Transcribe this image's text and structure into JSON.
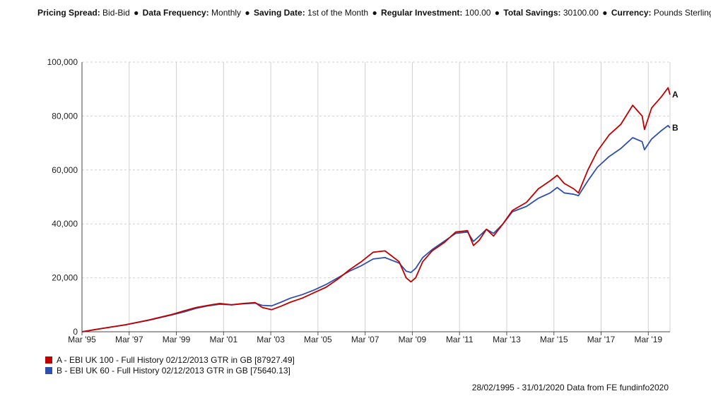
{
  "header": {
    "items": [
      {
        "key": "Pricing Spread:",
        "value": "Bid-Bid"
      },
      {
        "key": "Data Frequency:",
        "value": "Monthly"
      },
      {
        "key": "Saving Date:",
        "value": "1st of the Month"
      },
      {
        "key": "Regular Investment:",
        "value": "100.00"
      },
      {
        "key": "Total Savings:",
        "value": "30100.00"
      },
      {
        "key": "Currency:",
        "value": "Pounds Sterling"
      }
    ],
    "separator": "●"
  },
  "chart_data": {
    "type": "line",
    "title": "",
    "xlabel": "",
    "ylabel": "",
    "xlim": [
      1995.16,
      2020.08
    ],
    "ylim": [
      0,
      100000
    ],
    "grid": true,
    "x_ticks": [
      {
        "label": "Mar '95",
        "x": 1995.16
      },
      {
        "label": "Mar '97",
        "x": 1997.16
      },
      {
        "label": "Mar '99",
        "x": 1999.16
      },
      {
        "label": "Mar '01",
        "x": 2001.16
      },
      {
        "label": "Mar '03",
        "x": 2003.16
      },
      {
        "label": "Mar '05",
        "x": 2005.16
      },
      {
        "label": "Mar '07",
        "x": 2007.16
      },
      {
        "label": "Mar '09",
        "x": 2009.16
      },
      {
        "label": "Mar '11",
        "x": 2011.16
      },
      {
        "label": "Mar '13",
        "x": 2013.16
      },
      {
        "label": "Mar '15",
        "x": 2015.16
      },
      {
        "label": "Mar '17",
        "x": 2017.16
      },
      {
        "label": "Mar '19",
        "x": 2019.16
      }
    ],
    "y_ticks": [
      {
        "label": "0",
        "y": 0
      },
      {
        "label": "20,000",
        "y": 20000
      },
      {
        "label": "40,000",
        "y": 40000
      },
      {
        "label": "60,000",
        "y": 60000
      },
      {
        "label": "80,000",
        "y": 80000
      },
      {
        "label": "100,000",
        "y": 100000
      }
    ],
    "series": [
      {
        "name": "A - EBI UK 100 - Full History 02/12/2013 GTR in GB [87927.49]",
        "end_label": "A",
        "color": "#c00000",
        "points": [
          [
            1995.16,
            0
          ],
          [
            1996.0,
            1200
          ],
          [
            1997.0,
            2600
          ],
          [
            1998.0,
            4400
          ],
          [
            1999.0,
            6500
          ],
          [
            1999.5,
            7800
          ],
          [
            2000.0,
            9000
          ],
          [
            2000.5,
            9800
          ],
          [
            2001.0,
            10500
          ],
          [
            2001.5,
            10000
          ],
          [
            2002.0,
            10500
          ],
          [
            2002.5,
            10800
          ],
          [
            2002.8,
            9000
          ],
          [
            2003.2,
            8200
          ],
          [
            2003.6,
            9500
          ],
          [
            2004.0,
            11000
          ],
          [
            2004.5,
            12500
          ],
          [
            2005.0,
            14500
          ],
          [
            2005.5,
            16500
          ],
          [
            2006.0,
            19500
          ],
          [
            2006.5,
            23000
          ],
          [
            2007.0,
            26000
          ],
          [
            2007.5,
            29500
          ],
          [
            2008.0,
            30000
          ],
          [
            2008.3,
            28000
          ],
          [
            2008.6,
            26000
          ],
          [
            2008.9,
            20000
          ],
          [
            2009.1,
            18500
          ],
          [
            2009.3,
            20000
          ],
          [
            2009.6,
            26000
          ],
          [
            2010.0,
            30000
          ],
          [
            2010.5,
            33000
          ],
          [
            2011.0,
            37000
          ],
          [
            2011.5,
            37500
          ],
          [
            2011.75,
            32000
          ],
          [
            2012.0,
            34000
          ],
          [
            2012.3,
            38000
          ],
          [
            2012.6,
            35500
          ],
          [
            2013.0,
            40000
          ],
          [
            2013.4,
            45000
          ],
          [
            2014.0,
            48000
          ],
          [
            2014.5,
            53000
          ],
          [
            2015.0,
            56000
          ],
          [
            2015.3,
            58000
          ],
          [
            2015.6,
            55000
          ],
          [
            2016.0,
            53000
          ],
          [
            2016.2,
            51500
          ],
          [
            2016.6,
            60000
          ],
          [
            2017.0,
            67000
          ],
          [
            2017.5,
            73000
          ],
          [
            2018.0,
            77000
          ],
          [
            2018.5,
            84000
          ],
          [
            2018.9,
            80000
          ],
          [
            2019.0,
            75000
          ],
          [
            2019.3,
            83000
          ],
          [
            2019.7,
            87000
          ],
          [
            2020.0,
            90500
          ],
          [
            2020.08,
            87927
          ]
        ]
      },
      {
        "name": "B - EBI UK 60 - Full History 02/12/2013 GTR in GB [75640.13]",
        "end_label": "B",
        "color": "#2e4fad",
        "points": [
          [
            1995.16,
            0
          ],
          [
            1996.0,
            1200
          ],
          [
            1997.0,
            2600
          ],
          [
            1998.0,
            4300
          ],
          [
            1999.0,
            6300
          ],
          [
            1999.5,
            7400
          ],
          [
            2000.0,
            8700
          ],
          [
            2000.5,
            9600
          ],
          [
            2001.0,
            10200
          ],
          [
            2001.5,
            10000
          ],
          [
            2002.0,
            10400
          ],
          [
            2002.5,
            10600
          ],
          [
            2002.8,
            9800
          ],
          [
            2003.2,
            9600
          ],
          [
            2003.6,
            11000
          ],
          [
            2004.0,
            12500
          ],
          [
            2004.5,
            13800
          ],
          [
            2005.0,
            15500
          ],
          [
            2005.5,
            17500
          ],
          [
            2006.0,
            20000
          ],
          [
            2006.5,
            22500
          ],
          [
            2007.0,
            24500
          ],
          [
            2007.5,
            27000
          ],
          [
            2008.0,
            27500
          ],
          [
            2008.3,
            26500
          ],
          [
            2008.6,
            25500
          ],
          [
            2008.9,
            22500
          ],
          [
            2009.1,
            22000
          ],
          [
            2009.3,
            23500
          ],
          [
            2009.6,
            27500
          ],
          [
            2010.0,
            30500
          ],
          [
            2010.5,
            33500
          ],
          [
            2011.0,
            36500
          ],
          [
            2011.5,
            37000
          ],
          [
            2011.75,
            33500
          ],
          [
            2012.0,
            35500
          ],
          [
            2012.3,
            38000
          ],
          [
            2012.6,
            36500
          ],
          [
            2013.0,
            40000
          ],
          [
            2013.4,
            44500
          ],
          [
            2014.0,
            46500
          ],
          [
            2014.5,
            49500
          ],
          [
            2015.0,
            51500
          ],
          [
            2015.3,
            53500
          ],
          [
            2015.6,
            51500
          ],
          [
            2016.0,
            51000
          ],
          [
            2016.2,
            50500
          ],
          [
            2016.6,
            56000
          ],
          [
            2017.0,
            61000
          ],
          [
            2017.5,
            65000
          ],
          [
            2018.0,
            68000
          ],
          [
            2018.5,
            72000
          ],
          [
            2018.9,
            70500
          ],
          [
            2019.0,
            67500
          ],
          [
            2019.3,
            71500
          ],
          [
            2019.7,
            74500
          ],
          [
            2020.0,
            76500
          ],
          [
            2020.08,
            75640
          ]
        ]
      }
    ]
  },
  "legend": [
    {
      "label": "A - EBI UK 100 - Full History 02/12/2013 GTR in GB [87927.49]",
      "color": "#c00000"
    },
    {
      "label": "B - EBI UK 60 - Full History 02/12/2013 GTR in GB [75640.13]",
      "color": "#2e4fad"
    }
  ],
  "footer": "28/02/1995 - 31/01/2020 Data from FE fundinfo2020"
}
